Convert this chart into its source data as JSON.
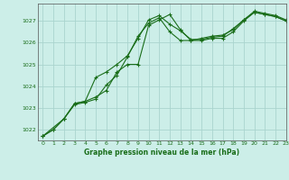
{
  "title": "Graphe pression niveau de la mer (hPa)",
  "background_color": "#cceee8",
  "grid_color": "#aad4ce",
  "line_color": "#1a6e1a",
  "xlim": [
    -0.5,
    23
  ],
  "ylim": [
    1021.5,
    1027.8
  ],
  "yticks": [
    1022,
    1023,
    1024,
    1025,
    1026,
    1027
  ],
  "xticks": [
    0,
    1,
    2,
    3,
    4,
    5,
    6,
    7,
    8,
    9,
    10,
    11,
    12,
    13,
    14,
    15,
    16,
    17,
    18,
    19,
    20,
    21,
    22,
    23
  ],
  "series": [
    {
      "x": [
        0,
        1,
        2,
        3,
        4,
        5,
        6,
        7,
        8,
        9,
        10,
        11,
        12,
        13,
        14,
        15,
        16,
        17,
        18,
        19,
        20,
        21,
        22,
        23
      ],
      "y": [
        1021.7,
        1022.0,
        1022.5,
        1023.2,
        1023.3,
        1023.5,
        1023.8,
        1024.65,
        1025.0,
        1025.0,
        1026.8,
        1027.05,
        1027.3,
        1026.6,
        1026.1,
        1026.1,
        1026.2,
        1026.2,
        1026.5,
        1027.0,
        1027.4,
        1027.3,
        1027.2,
        1027.0
      ]
    },
    {
      "x": [
        0,
        1,
        2,
        3,
        4,
        5,
        6,
        7,
        8,
        9,
        10,
        11,
        12,
        13,
        14,
        15,
        16,
        17,
        18,
        19,
        20,
        21,
        22,
        23
      ],
      "y": [
        1021.7,
        1022.0,
        1022.5,
        1023.15,
        1023.25,
        1023.4,
        1024.05,
        1024.5,
        1025.35,
        1026.3,
        1026.9,
        1027.15,
        1026.5,
        1026.1,
        1026.1,
        1026.2,
        1026.3,
        1026.35,
        1026.6,
        1027.05,
        1027.4,
        1027.3,
        1027.2,
        1027.0
      ]
    },
    {
      "x": [
        0,
        2,
        3,
        4,
        5,
        6,
        7,
        8,
        9,
        10,
        11,
        12,
        13,
        14,
        15,
        16,
        17,
        18,
        19,
        20,
        21,
        22,
        23
      ],
      "y": [
        1021.7,
        1022.5,
        1023.2,
        1023.3,
        1024.4,
        1024.65,
        1025.0,
        1025.4,
        1026.2,
        1027.05,
        1027.25,
        1026.85,
        1026.55,
        1026.15,
        1026.15,
        1026.25,
        1026.3,
        1026.65,
        1027.05,
        1027.45,
        1027.35,
        1027.25,
        1027.05
      ]
    }
  ]
}
